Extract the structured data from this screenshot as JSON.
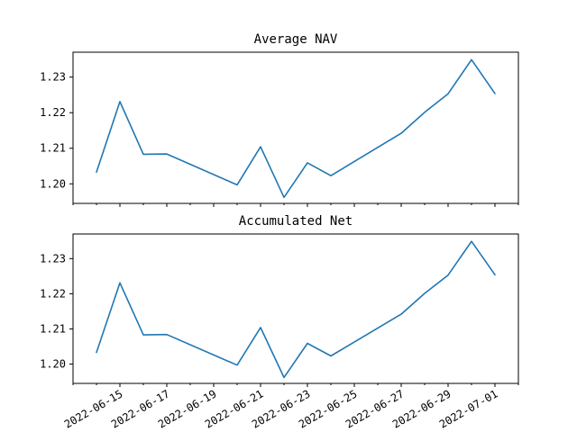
{
  "chart_data": [
    {
      "type": "line",
      "title": "Average NAV",
      "x": [
        "2022-06-14",
        "2022-06-15",
        "2022-06-16",
        "2022-06-17",
        "2022-06-20",
        "2022-06-21",
        "2022-06-22",
        "2022-06-23",
        "2022-06-24",
        "2022-06-27",
        "2022-06-28",
        "2022-06-29",
        "2022-06-30",
        "2022-07-01"
      ],
      "values": [
        1.2033,
        1.2231,
        1.2083,
        1.2084,
        1.1997,
        1.2104,
        1.1962,
        1.2059,
        1.2023,
        1.2142,
        1.2201,
        1.2253,
        1.2349,
        1.2254
      ],
      "xticks": [
        "2022-06-15",
        "2022-06-17",
        "2022-06-19",
        "2022-06-21",
        "2022-06-23",
        "2022-06-25",
        "2022-06-27",
        "2022-06-29",
        "2022-07-01"
      ],
      "show_xtick_labels": false,
      "yticks": [
        1.2,
        1.21,
        1.22,
        1.23
      ],
      "ylim": [
        1.1945,
        1.237
      ],
      "xlim": [
        "2022-06-13",
        "2022-07-02"
      ],
      "grid": false,
      "color": "#1f77b4"
    },
    {
      "type": "line",
      "title": "Accumulated Net",
      "x": [
        "2022-06-14",
        "2022-06-15",
        "2022-06-16",
        "2022-06-17",
        "2022-06-20",
        "2022-06-21",
        "2022-06-22",
        "2022-06-23",
        "2022-06-24",
        "2022-06-27",
        "2022-06-28",
        "2022-06-29",
        "2022-06-30",
        "2022-07-01"
      ],
      "values": [
        1.2033,
        1.2231,
        1.2083,
        1.2084,
        1.1997,
        1.2104,
        1.1962,
        1.2059,
        1.2023,
        1.2142,
        1.2201,
        1.2253,
        1.2349,
        1.2254
      ],
      "xticks": [
        "2022-06-15",
        "2022-06-17",
        "2022-06-19",
        "2022-06-21",
        "2022-06-23",
        "2022-06-25",
        "2022-06-27",
        "2022-06-29",
        "2022-07-01"
      ],
      "show_xtick_labels": true,
      "yticks": [
        1.2,
        1.21,
        1.22,
        1.23
      ],
      "ylim": [
        1.1945,
        1.237
      ],
      "xlim": [
        "2022-06-13",
        "2022-07-02"
      ],
      "grid": false,
      "color": "#1f77b4"
    }
  ]
}
